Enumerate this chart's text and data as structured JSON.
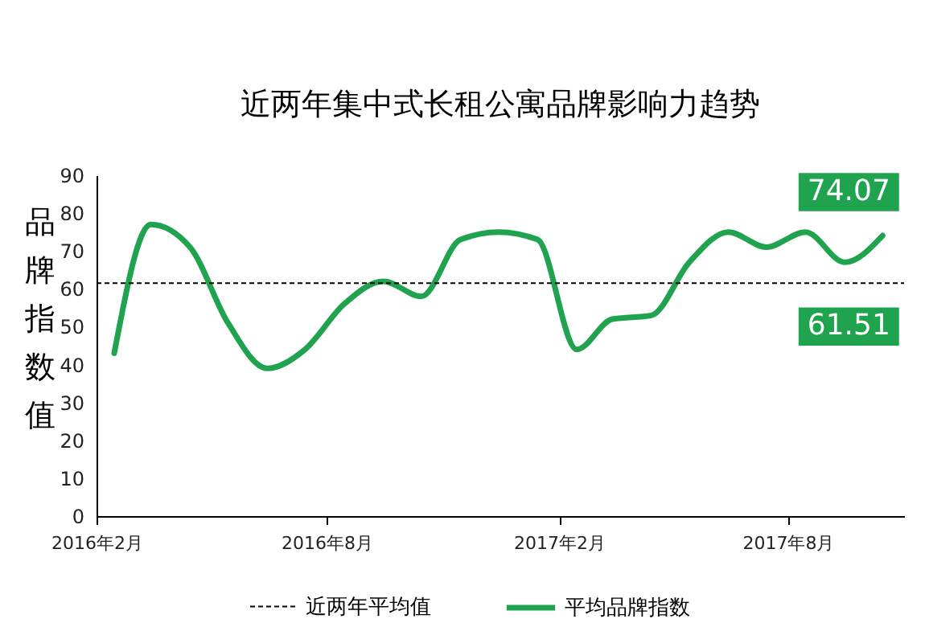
{
  "chart_data": {
    "type": "line",
    "title": "近两年集中式长租公寓品牌影响力趋势",
    "ylabel": "品牌指数值",
    "x": [
      "2016-02-15",
      "2016-03-15",
      "2016-04-15",
      "2016-05-15",
      "2016-06-15",
      "2016-07-15",
      "2016-08-15",
      "2016-09-15",
      "2016-10-15",
      "2016-11-15",
      "2016-12-15",
      "2017-01-15",
      "2017-02-15",
      "2017-03-15",
      "2017-04-15",
      "2017-05-15",
      "2017-06-15",
      "2017-07-15",
      "2017-08-15",
      "2017-09-15",
      "2017-10-15"
    ],
    "series": [
      {
        "name": "平均品牌指数",
        "color": "#1fa34f",
        "values": [
          43,
          77,
          71,
          51,
          39,
          44,
          56,
          62,
          58,
          73,
          75,
          73,
          44,
          52,
          53,
          67,
          75,
          71,
          75,
          67,
          74.07
        ]
      }
    ],
    "xlim": [
      "2016-02",
      "2017-11"
    ],
    "xticks": [
      {
        "value": "2016-02",
        "label": "2016年2月"
      },
      {
        "value": "2016-08",
        "label": "2016年8月"
      },
      {
        "value": "2017-02",
        "label": "2017年2月"
      },
      {
        "value": "2017-08",
        "label": "2017年8月"
      }
    ],
    "ylim": [
      0,
      90
    ],
    "yticks": [
      0,
      10,
      20,
      30,
      40,
      50,
      60,
      70,
      80,
      90
    ],
    "ref_lines": [
      {
        "axis": "y",
        "value": 61.51,
        "label": "近两年平均值",
        "color": "#000000",
        "line_style": "dashed"
      }
    ],
    "annotations": [
      {
        "text": "74.07",
        "x": "2017-10-15",
        "y": 74.07
      },
      {
        "text": "61.51",
        "x": "2017-10-15",
        "y": 61.51
      }
    ],
    "grid": false,
    "legend": "bottom",
    "marker": "none",
    "line_style": "solid"
  }
}
